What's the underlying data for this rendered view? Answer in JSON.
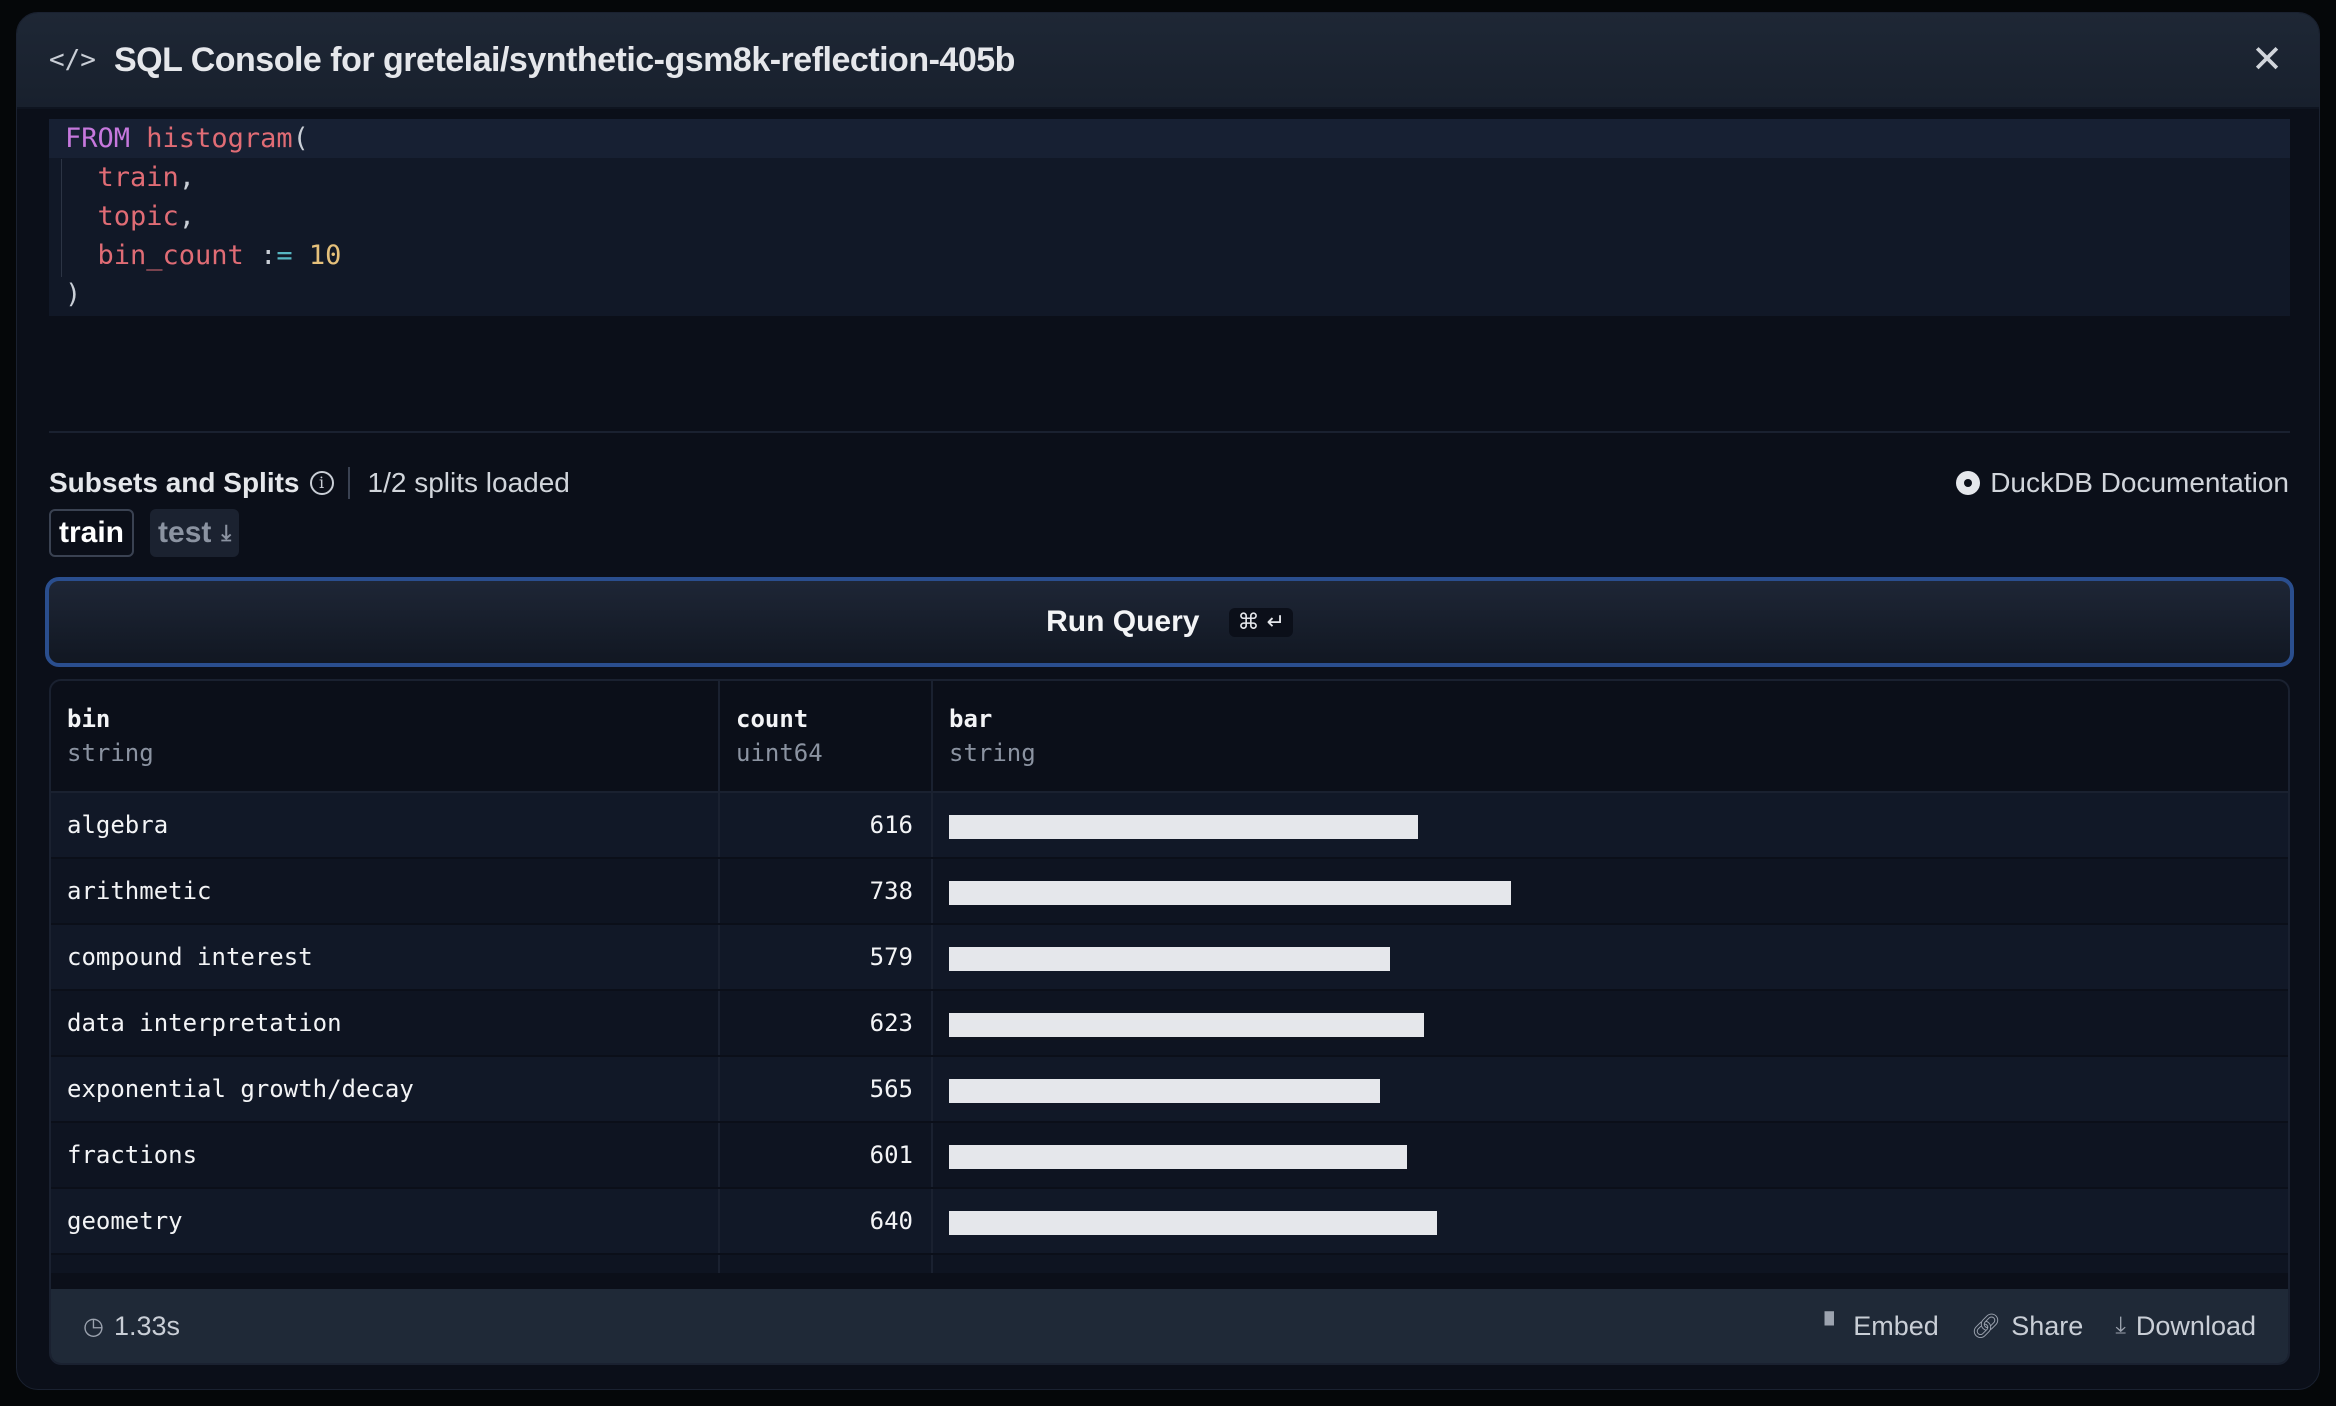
{
  "header": {
    "title": "SQL Console for gretelai/synthetic-gsm8k-reflection-405b",
    "icon": "code-icon",
    "close_icon": "close-icon"
  },
  "editor": {
    "lines": [
      [
        {
          "t": "FROM",
          "c": "kw"
        },
        {
          "t": " ",
          "c": "pl"
        },
        {
          "t": "histogram",
          "c": "fn"
        },
        {
          "t": "(",
          "c": "pl"
        }
      ],
      [
        {
          "t": "  train",
          "c": "fn"
        },
        {
          "t": ",",
          "c": "pl"
        }
      ],
      [
        {
          "t": "  topic",
          "c": "fn"
        },
        {
          "t": ",",
          "c": "pl"
        }
      ],
      [
        {
          "t": "  bin_count",
          "c": "fn"
        },
        {
          "t": " :",
          "c": "pl"
        },
        {
          "t": "=",
          "c": "op"
        },
        {
          "t": " ",
          "c": "pl"
        },
        {
          "t": "10",
          "c": "num"
        }
      ],
      [
        {
          "t": ")",
          "c": "pl"
        }
      ]
    ]
  },
  "subsets": {
    "label": "Subsets and Splits",
    "status": "1/2 splits loaded",
    "docs_link": "DuckDB Documentation"
  },
  "splits": [
    {
      "label": "train",
      "active": true
    },
    {
      "label": "test",
      "active": false
    }
  ],
  "run": {
    "label": "Run Query",
    "shortcut": "⌘ ↵"
  },
  "table": {
    "columns": [
      {
        "name": "bin",
        "type": "string"
      },
      {
        "name": "count",
        "type": "uint64"
      },
      {
        "name": "bar",
        "type": "string"
      }
    ],
    "max_count": 1000,
    "rows": [
      {
        "bin": "algebra",
        "count": 616
      },
      {
        "bin": "arithmetic",
        "count": 738
      },
      {
        "bin": "compound interest",
        "count": 579
      },
      {
        "bin": "data interpretation",
        "count": 623
      },
      {
        "bin": "exponential growth/decay",
        "count": 565
      },
      {
        "bin": "fractions",
        "count": 601
      },
      {
        "bin": "geometry",
        "count": 640
      }
    ]
  },
  "footer": {
    "time": "1.33s",
    "embed": "Embed",
    "share": "Share",
    "download": "Download"
  },
  "colors": {
    "run_border": "#2a4e8e",
    "bar": "#e5e7eb",
    "keyword": "#c678dd",
    "identifier": "#e06c75",
    "number": "#e5c07b"
  }
}
